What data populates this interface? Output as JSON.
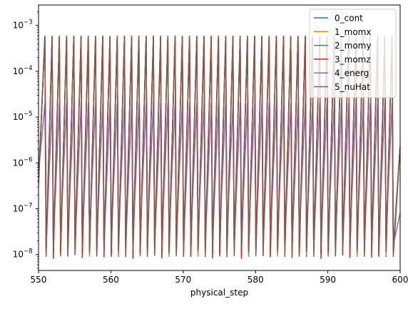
{
  "chart_data": {
    "type": "line",
    "xlabel": "physical_step",
    "ylabel": "",
    "yscale": "log",
    "xlim": [
      550,
      600
    ],
    "ylim": [
      4.5e-09,
      0.0028
    ],
    "x_ticks": [
      550,
      560,
      570,
      580,
      590,
      600
    ],
    "y_ticks": [
      {
        "value": 1e-08,
        "base": "10",
        "exp": "−8"
      },
      {
        "value": 1e-07,
        "base": "10",
        "exp": "−7"
      },
      {
        "value": 1e-06,
        "base": "10",
        "exp": "−6"
      },
      {
        "value": 1e-05,
        "base": "10",
        "exp": "−5"
      },
      {
        "value": 0.0001,
        "base": "10",
        "exp": "−4"
      },
      {
        "value": 0.001,
        "base": "10",
        "exp": "−3"
      }
    ],
    "legend_position": "top-right",
    "grid": false,
    "period": 1,
    "peaks_x": [
      551,
      552,
      553,
      554,
      555,
      556,
      557,
      558,
      559,
      560,
      561,
      562,
      563,
      564,
      565,
      566,
      567,
      568,
      569,
      570,
      571,
      572,
      573,
      574,
      575,
      576,
      577,
      578,
      579,
      580,
      581,
      582,
      583,
      584,
      585,
      586,
      587,
      588,
      589,
      590,
      591,
      592,
      593,
      594,
      595,
      596,
      597,
      598,
      599
    ],
    "troughs_x": [
      551.0,
      552.0,
      553.0,
      554.0,
      555.0,
      556.0,
      557.0,
      558.0,
      559.0,
      560.0,
      561.0,
      562.0,
      563.0,
      564.0,
      565.0,
      566.0,
      567.0,
      568.0,
      569.0,
      570.0,
      571.0,
      572.0,
      573.0,
      574.0,
      575.0,
      576.0,
      577.0,
      578.0,
      579.0,
      580.0,
      581.0,
      582.0,
      583.0,
      584.0,
      585.0,
      586.0,
      587.0,
      588.0,
      589.0,
      590.0,
      591.0,
      592.0,
      593.0,
      594.0,
      595.0,
      596.0,
      597.0,
      598.0,
      599.0
    ],
    "series": [
      {
        "name": "0_cont",
        "color": "#1f77b4",
        "peak": 0.00058,
        "trough": 1.2e-08
      },
      {
        "name": "1_momx",
        "color": "#ff7f0e",
        "peak": 0.00058,
        "trough": 1.2e-08
      },
      {
        "name": "2_momy",
        "color": "#2ca02c",
        "peak": 0.00058,
        "trough": 1.2e-08
      },
      {
        "name": "3_momz",
        "color": "#d62728",
        "peak": 0.00058,
        "trough": 1.1e-08
      },
      {
        "name": "4_energ",
        "color": "#9467bd",
        "peak": 2e-05,
        "trough": 2e-08
      },
      {
        "name": "5_nuHat",
        "color": "#8c564b",
        "peak": 0.00058,
        "trough": 1.2e-08
      }
    ]
  }
}
